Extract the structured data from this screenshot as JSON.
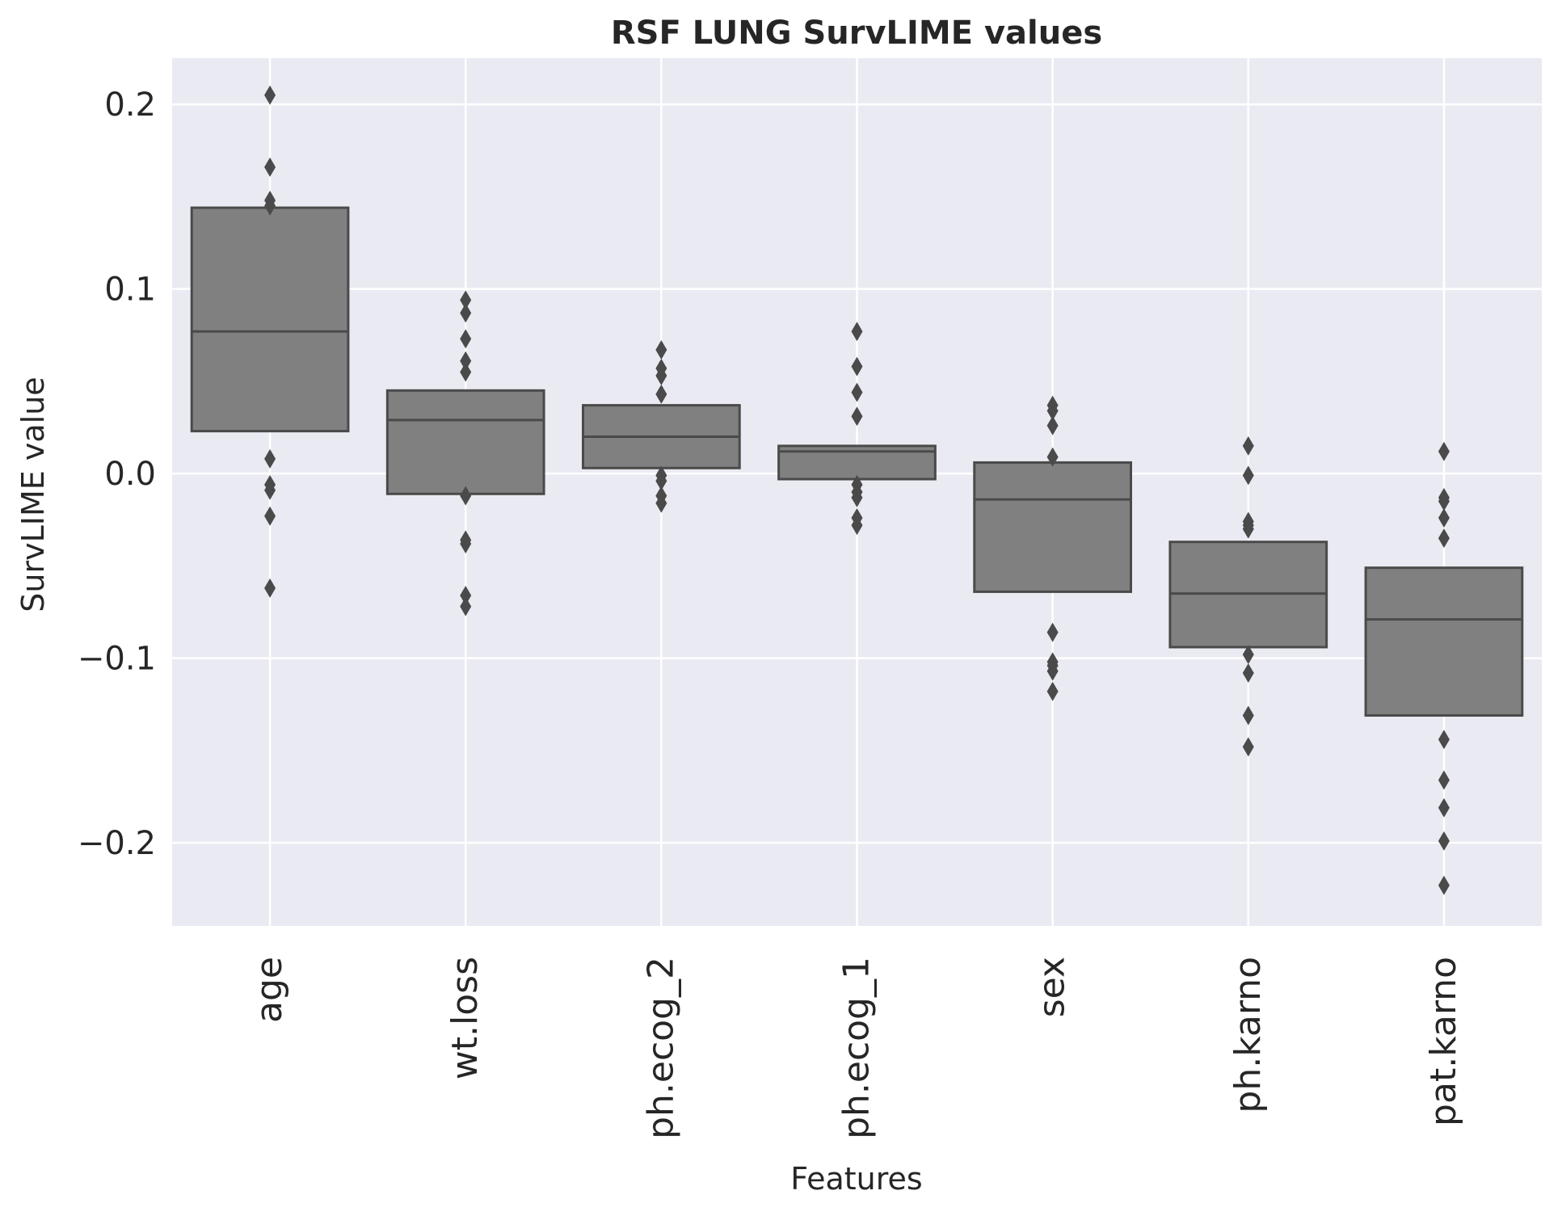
{
  "chart_data": {
    "type": "boxplot",
    "title": "RSF LUNG SurvLIME values",
    "xlabel": "Features",
    "ylabel": "SurvLIME value",
    "ylim": [
      -0.245,
      0.225
    ],
    "yticks": [
      -0.2,
      -0.1,
      0.0,
      0.1,
      0.2
    ],
    "ytick_labels": [
      "−0.2",
      "−0.1",
      "0.0",
      "0.1",
      "0.2"
    ],
    "grid": true,
    "colors": {
      "background": "#eaeaf2",
      "grid": "#ffffff",
      "box_fill": "#808080",
      "box_edge": "#4a4a4a",
      "text": "#262626"
    },
    "categories": [
      "age",
      "wt.loss",
      "ph.ecog_2",
      "ph.ecog_1",
      "sex",
      "ph.karno",
      "pat.karno"
    ],
    "boxes": [
      {
        "category": "age",
        "q1": 0.023,
        "median": 0.077,
        "q3": 0.144,
        "outliers": [
          0.205,
          0.166,
          0.148,
          0.145,
          0.008,
          -0.006,
          -0.009,
          -0.023,
          -0.062
        ]
      },
      {
        "category": "wt.loss",
        "q1": -0.011,
        "median": 0.029,
        "q3": 0.045,
        "outliers": [
          0.094,
          0.087,
          0.073,
          0.061,
          0.055,
          -0.012,
          -0.036,
          -0.038,
          -0.066,
          -0.072
        ]
      },
      {
        "category": "ph.ecog_2",
        "q1": 0.003,
        "median": 0.02,
        "q3": 0.037,
        "outliers": [
          0.067,
          0.057,
          0.053,
          0.043,
          -0.001,
          -0.004,
          -0.012,
          -0.016
        ]
      },
      {
        "category": "ph.ecog_1",
        "q1": -0.003,
        "median": 0.012,
        "q3": 0.015,
        "outliers": [
          0.077,
          0.058,
          0.044,
          0.031,
          -0.006,
          -0.01,
          -0.013,
          -0.024,
          -0.028
        ]
      },
      {
        "category": "sex",
        "q1": -0.064,
        "median": -0.014,
        "q3": 0.006,
        "outliers": [
          0.037,
          0.034,
          0.026,
          0.009,
          -0.086,
          -0.102,
          -0.104,
          -0.107,
          -0.118
        ]
      },
      {
        "category": "ph.karno",
        "q1": -0.094,
        "median": -0.065,
        "q3": -0.037,
        "outliers": [
          0.015,
          -0.001,
          -0.026,
          -0.028,
          -0.03,
          -0.098,
          -0.108,
          -0.131,
          -0.148
        ]
      },
      {
        "category": "pat.karno",
        "q1": -0.131,
        "median": -0.079,
        "q3": -0.051,
        "outliers": [
          0.012,
          -0.013,
          -0.015,
          -0.024,
          -0.035,
          -0.144,
          -0.166,
          -0.181,
          -0.199,
          -0.223
        ]
      }
    ]
  }
}
